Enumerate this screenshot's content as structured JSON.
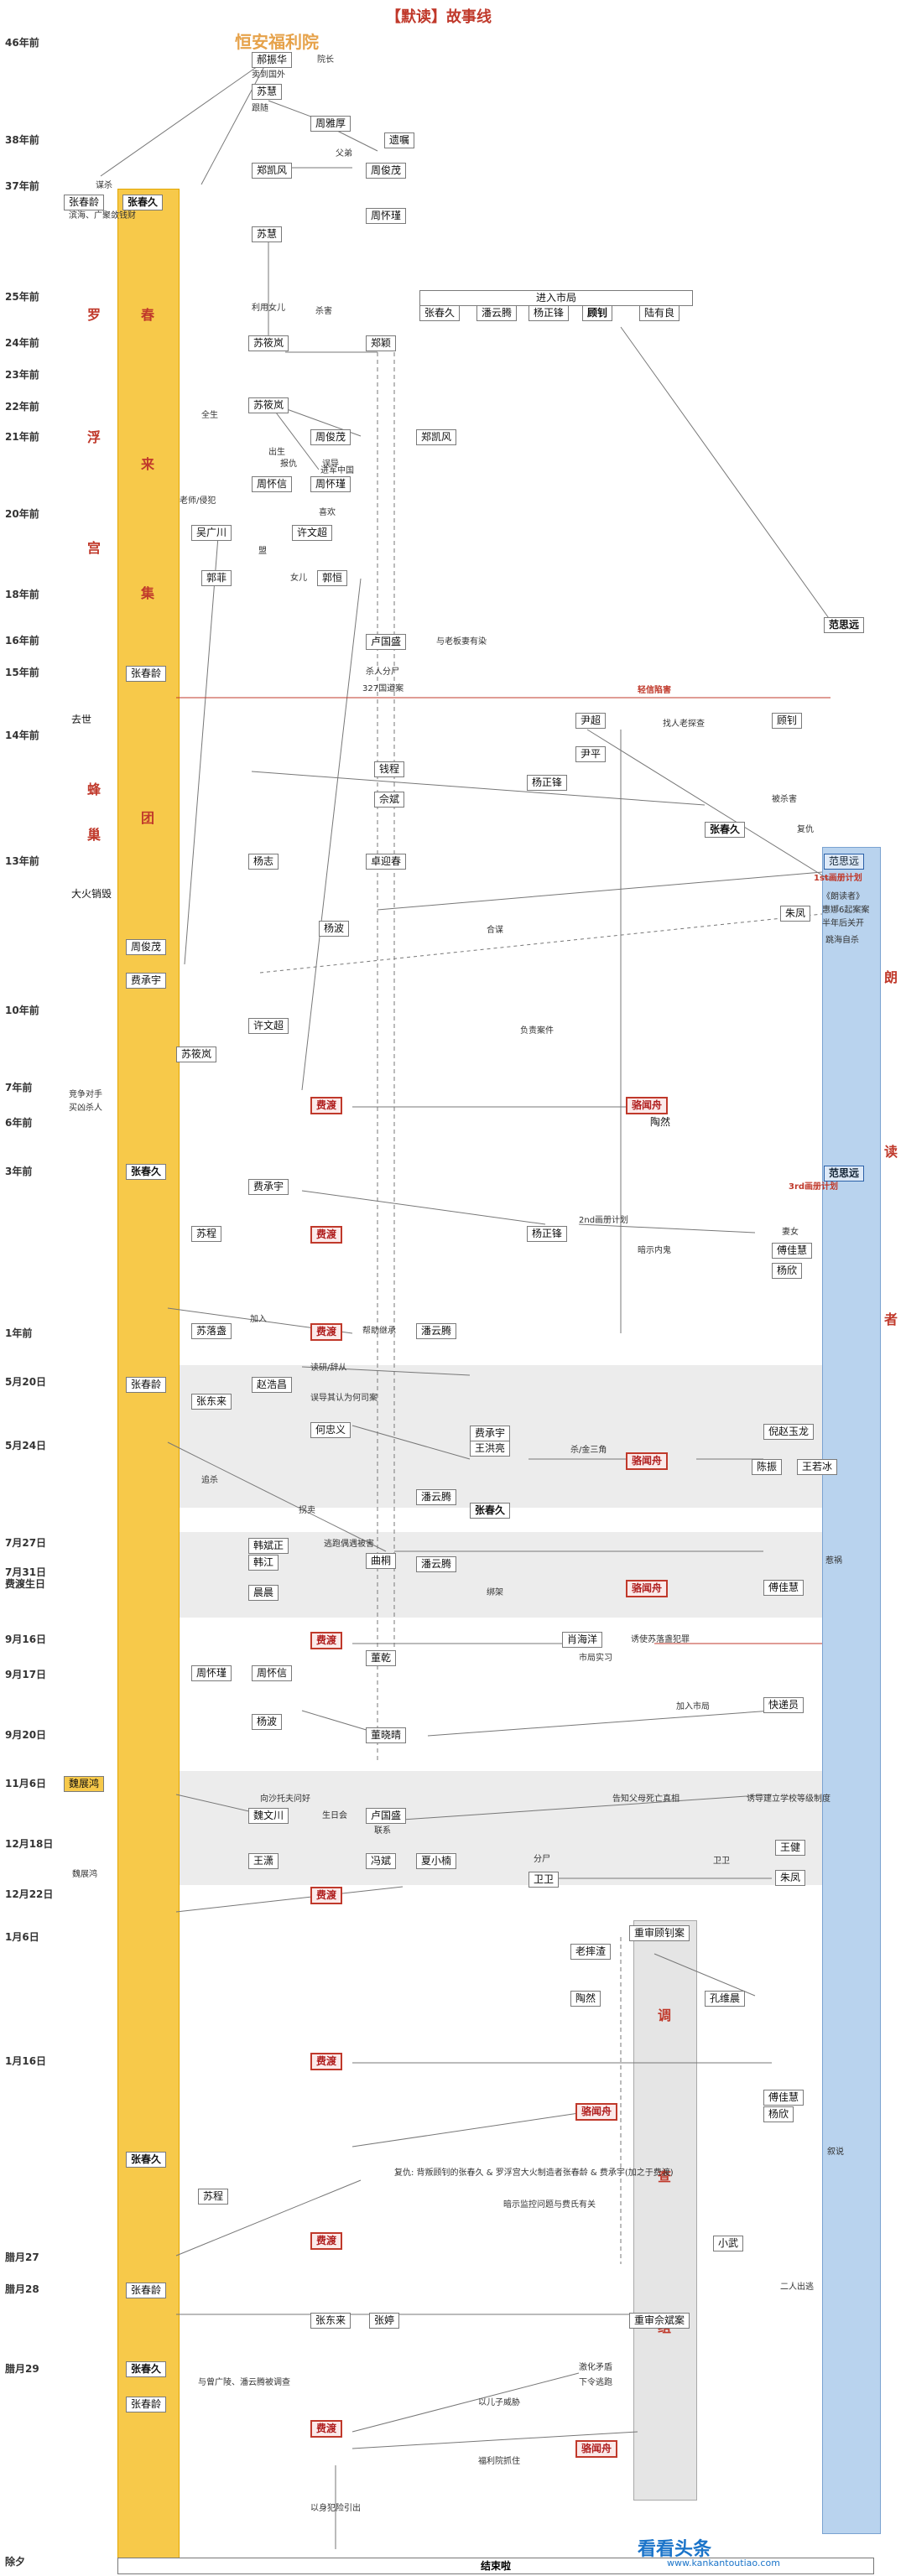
{
  "title": "【默读】故事线",
  "hospital": "恒安福利院",
  "time_labels": [
    "46年前",
    "38年前",
    "37年前",
    "25年前",
    "24年前",
    "23年前",
    "22年前",
    "21年前",
    "20年前",
    "18年前",
    "16年前",
    "15年前",
    "14年前",
    "13年前",
    "10年前",
    "7年前",
    "6年前",
    "3年前",
    "1年前",
    "5月20日",
    "5月24日",
    "7月27日",
    "7月31日 费渡生日",
    "9月16日",
    "9月17日",
    "9月20日",
    "11月6日",
    "12月18日",
    "12月22日",
    "1月6日",
    "1月16日",
    "腊月27",
    "腊月28",
    "腊月29",
    "除夕"
  ],
  "column_chars": {
    "left_red": [
      "罗",
      "浮",
      "宫"
    ],
    "yellow": [
      "春",
      "来",
      "集",
      "团"
    ],
    "left_hive": [
      "蜂",
      "巢"
    ],
    "right_blue": [
      "朗",
      "读",
      "者"
    ],
    "gray": [
      "调",
      "查",
      "组"
    ]
  },
  "nodes": [
    "郝振华",
    "院长",
    "卖到国外",
    "苏慧",
    "跟随",
    "周雅厚",
    "遗嘱",
    "郑凯风",
    "周俊茂",
    "父弟",
    "周怀瑾",
    "张春龄",
    "张春久",
    "滨海、广聚敛钱财",
    "苏慧",
    "苏筱岚",
    "郑颖",
    "苏筱岚",
    "周俊茂",
    "郑凯风",
    "周怀信",
    "周怀瑾",
    "吴广川",
    "许文超",
    "郭菲",
    "郭恒",
    "进入市局",
    "张春久",
    "潘云腾",
    "杨正锋",
    "顾钊",
    "陆有良",
    "卢国盛",
    "范思远",
    "张春龄",
    "尹超",
    "顾钊",
    "尹平",
    "钱程",
    "佘斌",
    "杨正锋",
    "张春久",
    "杨志",
    "卓迎春",
    "范思远",
    "朱凤",
    "杨波",
    "周俊茂",
    "费承宇",
    "苏筱岚",
    "许文超",
    "费渡",
    "骆闻舟",
    "陶然",
    "张春久",
    "费承宇",
    "范思远",
    "苏程",
    "费渡",
    "杨正锋",
    "傅佳慧",
    "杨欣",
    "苏落盏",
    "费渡",
    "潘云腾",
    "张春龄",
    "赵浩昌",
    "张东来",
    "何忠义",
    "费承宇",
    "王洪亮",
    "骆闻舟",
    "倪赵玉龙",
    "陈振",
    "王若冰",
    "潘云腾",
    "张春久",
    "韩斌正",
    "韩江",
    "曲桐",
    "晨晨",
    "潘云腾",
    "骆闻舟",
    "傅佳慧",
    "费渡",
    "董乾",
    "肖海洋",
    "周怀瑾",
    "周怀信",
    "杨波",
    "董晓晴",
    "快递员",
    "魏展鸿",
    "魏文川",
    "卢国盛",
    "王潇",
    "冯斌",
    "夏小楠",
    "卫卫",
    "王健",
    "朱凤",
    "费渡",
    "老摔渣",
    "重审顾钊案",
    "陶然",
    "孔维晨",
    "费渡",
    "骆闻舟",
    "傅佳慧",
    "杨欣",
    "张春久",
    "苏程",
    "费渡",
    "小武",
    "张春龄",
    "张东来",
    "张婷",
    "重审佘斌案",
    "张春久",
    "张春龄",
    "费渡",
    "骆闻舟",
    "结束啦"
  ],
  "annotations": [
    "谋杀",
    "出生",
    "利用女儿",
    "杀害",
    "全生",
    "老师/侵犯",
    "喜欢",
    "报仇",
    "误导",
    "进军中国",
    "盟",
    "女儿",
    "与老板妻有染",
    "杀人分尸",
    "327国道案",
    "轻信陷害",
    "找人老探查",
    "被杀害",
    "复仇",
    "1st画册计划",
    "《朗读者》",
    "惠娜6起案案",
    "半年后关开",
    "跳海自杀",
    "合谋",
    "负责案件",
    "竞争对手",
    "买凶杀人",
    "3rd画册计划",
    "2nd画册计划",
    "暗示内鬼",
    "妻女",
    "加入",
    "帮助继承",
    "读研/辞从",
    "误导其认为何司案",
    "杀/金三角",
    "追杀",
    "拐卖",
    "逃跑偶遇被害",
    "绑架",
    "惹祸",
    "诱使苏落盏犯罪",
    "市局实习",
    "加入市局",
    "告知父母死亡真相",
    "诱导建立学校等级制度",
    "向沙托夫问好",
    "生日会",
    "联系",
    "分尸",
    "卫卫",
    "叙说",
    "复仇: 背叛顾钊的张春久 & 罗浮宫大火制造者张春龄 & 费承宇(加之于费渡)",
    "暗示监控问题与费氏有关",
    "与曾广陵、潘云腾被调查",
    "以儿子威胁",
    "福利院抓住",
    "以身犯险引出",
    "激化矛盾",
    "下令逃跑",
    "二人出逃",
    "去世",
    "大火销毁",
    "魏展鸿",
    "被查处"
  ],
  "watermark": "看看头条",
  "watermark_url": "www.kankantoutiao.com",
  "footer": "结束啦",
  "colors": {
    "yellow": "#f7c94a",
    "blue": "#b9d3ee",
    "red": "#c0392b",
    "gray": "#e5e5e5"
  }
}
